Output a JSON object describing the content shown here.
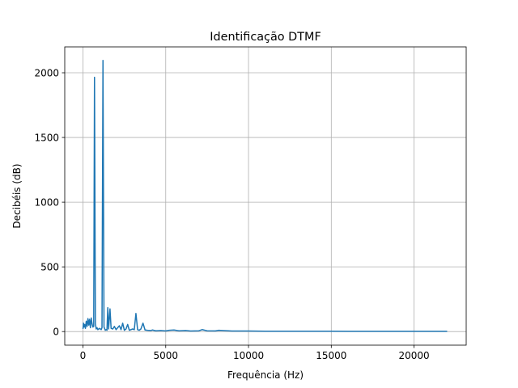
{
  "chart_data": {
    "type": "line",
    "title": "Identificação DTMF",
    "xlabel": "Frequência (Hz)",
    "ylabel": "Decibéis (dB)",
    "xlim": [
      -1100,
      23150
    ],
    "ylim": [
      -105,
      2200
    ],
    "xticks": [
      0,
      5000,
      10000,
      15000,
      20000
    ],
    "yticks": [
      0,
      500,
      1000,
      1500,
      2000
    ],
    "grid": true,
    "line_color": "#1f77b4",
    "series": [
      {
        "x": [
          0,
          30,
          60,
          100,
          150,
          200,
          250,
          300,
          350,
          400,
          450,
          500,
          550,
          600,
          650,
          697,
          750,
          800,
          850,
          900,
          950,
          1000,
          1050,
          1100,
          1150,
          1209,
          1270,
          1350,
          1400,
          1450,
          1500,
          1550,
          1633,
          1700,
          1800,
          1900,
          2000,
          2100,
          2200,
          2300,
          2400,
          2500,
          2600,
          2700,
          2800,
          2900,
          3000,
          3100,
          3200,
          3300,
          3400,
          3500,
          3627,
          3750,
          3900,
          4100,
          4200,
          4400,
          4700,
          5000,
          5200,
          5500,
          5800,
          6200,
          6500,
          7000,
          7200,
          7500,
          8000,
          8200,
          9000,
          10000,
          11000,
          12000,
          13000,
          14000,
          15000,
          16000,
          17000,
          18000,
          19000,
          20000,
          21000,
          22000
        ],
        "values": [
          20,
          65,
          35,
          55,
          25,
          80,
          40,
          100,
          50,
          95,
          30,
          105,
          60,
          35,
          40,
          1965,
          60,
          20,
          30,
          15,
          20,
          25,
          20,
          15,
          30,
          2095,
          35,
          10,
          15,
          10,
          185,
          20,
          175,
          25,
          20,
          40,
          15,
          30,
          45,
          15,
          65,
          10,
          20,
          55,
          10,
          15,
          20,
          15,
          140,
          15,
          10,
          20,
          65,
          12,
          10,
          8,
          12,
          6,
          8,
          5,
          10,
          12,
          6,
          8,
          4,
          6,
          15,
          6,
          5,
          10,
          4,
          4,
          3,
          3,
          3,
          3,
          3,
          2,
          2,
          2,
          2,
          2,
          2,
          2
        ]
      }
    ]
  }
}
